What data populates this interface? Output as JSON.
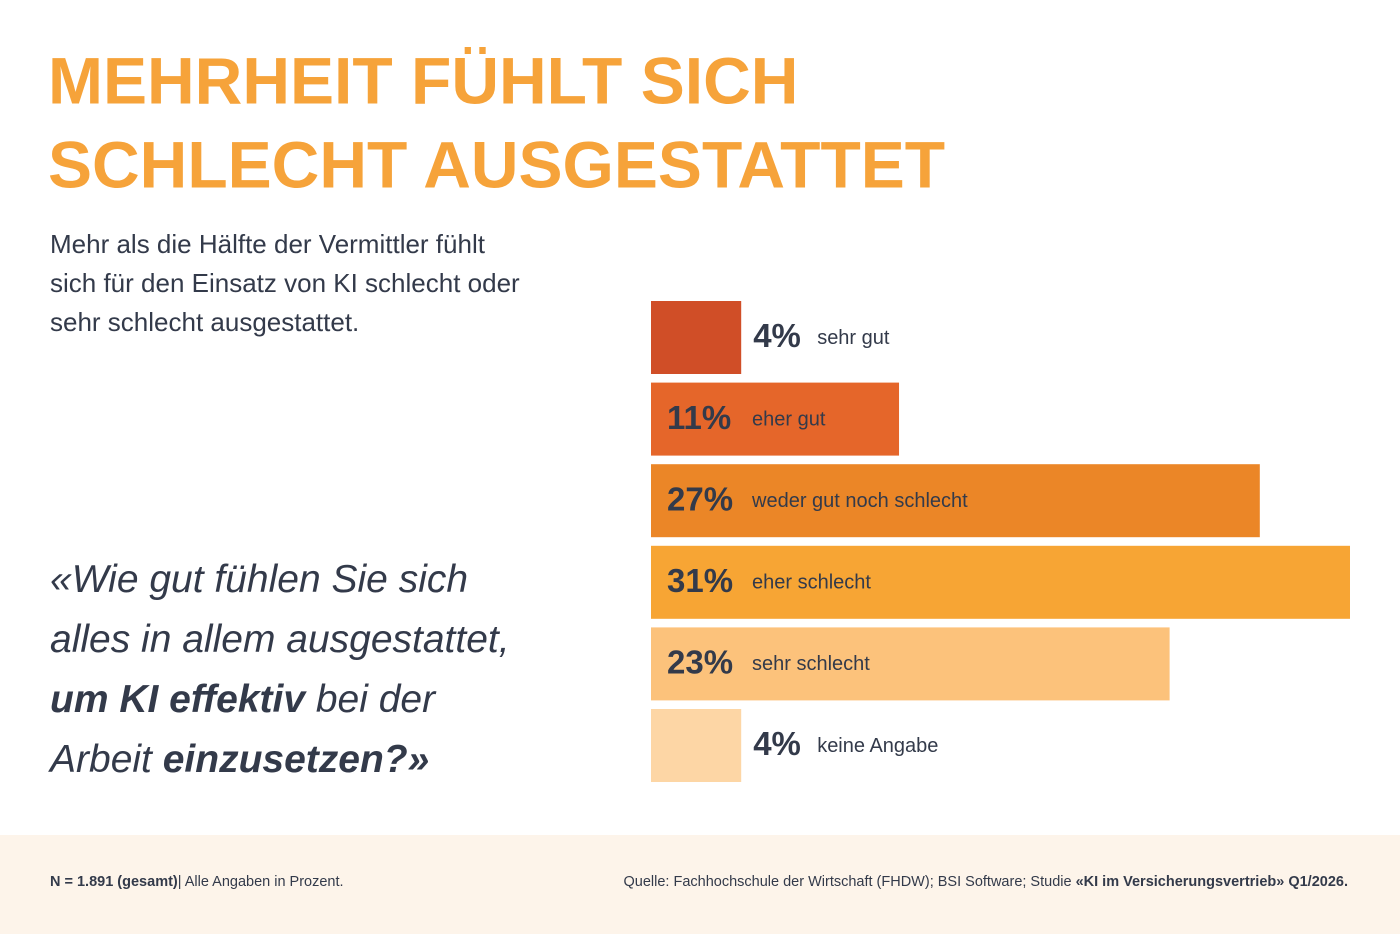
{
  "chart_data": {
    "type": "bar",
    "orientation": "horizontal",
    "title_lines": [
      "MEHRHEIT FÜHLT SICH",
      "SCHLECHT AUSGESTATTET"
    ],
    "subtitle_lines": [
      "Mehr als die Hälfte der Vermittler fühlt",
      "sich für den Einsatz von KI schlecht oder",
      "sehr schlecht ausgestattet."
    ],
    "question_lines": [
      [
        {
          "text": "«Wie gut fühlen Sie sich",
          "bold": false
        }
      ],
      [
        {
          "text": "alles in allem ausgestattet,",
          "bold": false
        }
      ],
      [
        {
          "text": "um KI effektiv",
          "bold": true
        },
        {
          "text": " bei der",
          "bold": false
        }
      ],
      [
        {
          "text": "Arbeit ",
          "bold": false
        },
        {
          "text": "einzusetzen?»",
          "bold": true
        }
      ]
    ],
    "categories": [
      "sehr gut",
      "eher gut",
      "weder gut noch schlecht",
      "eher schlecht",
      "sehr schlecht",
      "keine Angabe"
    ],
    "values": [
      4,
      11,
      27,
      31,
      23,
      4
    ],
    "value_labels": [
      "4%",
      "11%",
      "27%",
      "31%",
      "23%",
      "4%"
    ],
    "colors": [
      "#d04e27",
      "#e5662a",
      "#eb8627",
      "#f7a534",
      "#fcc27b",
      "#fdd6a5"
    ],
    "footer_left": [
      {
        "text": "N = 1.891 (gesamt)",
        "bold": true
      },
      {
        "text": "| Alle Angaben in Prozent.",
        "bold": false
      }
    ],
    "footer_right": [
      {
        "text": "Quelle: Fachhochschule der Wirtschaft (FHDW); BSI Software; Studie ",
        "bold": false
      },
      {
        "text": "«KI im Versicherungsvertrieb» Q1/2026.",
        "bold": true
      }
    ]
  }
}
